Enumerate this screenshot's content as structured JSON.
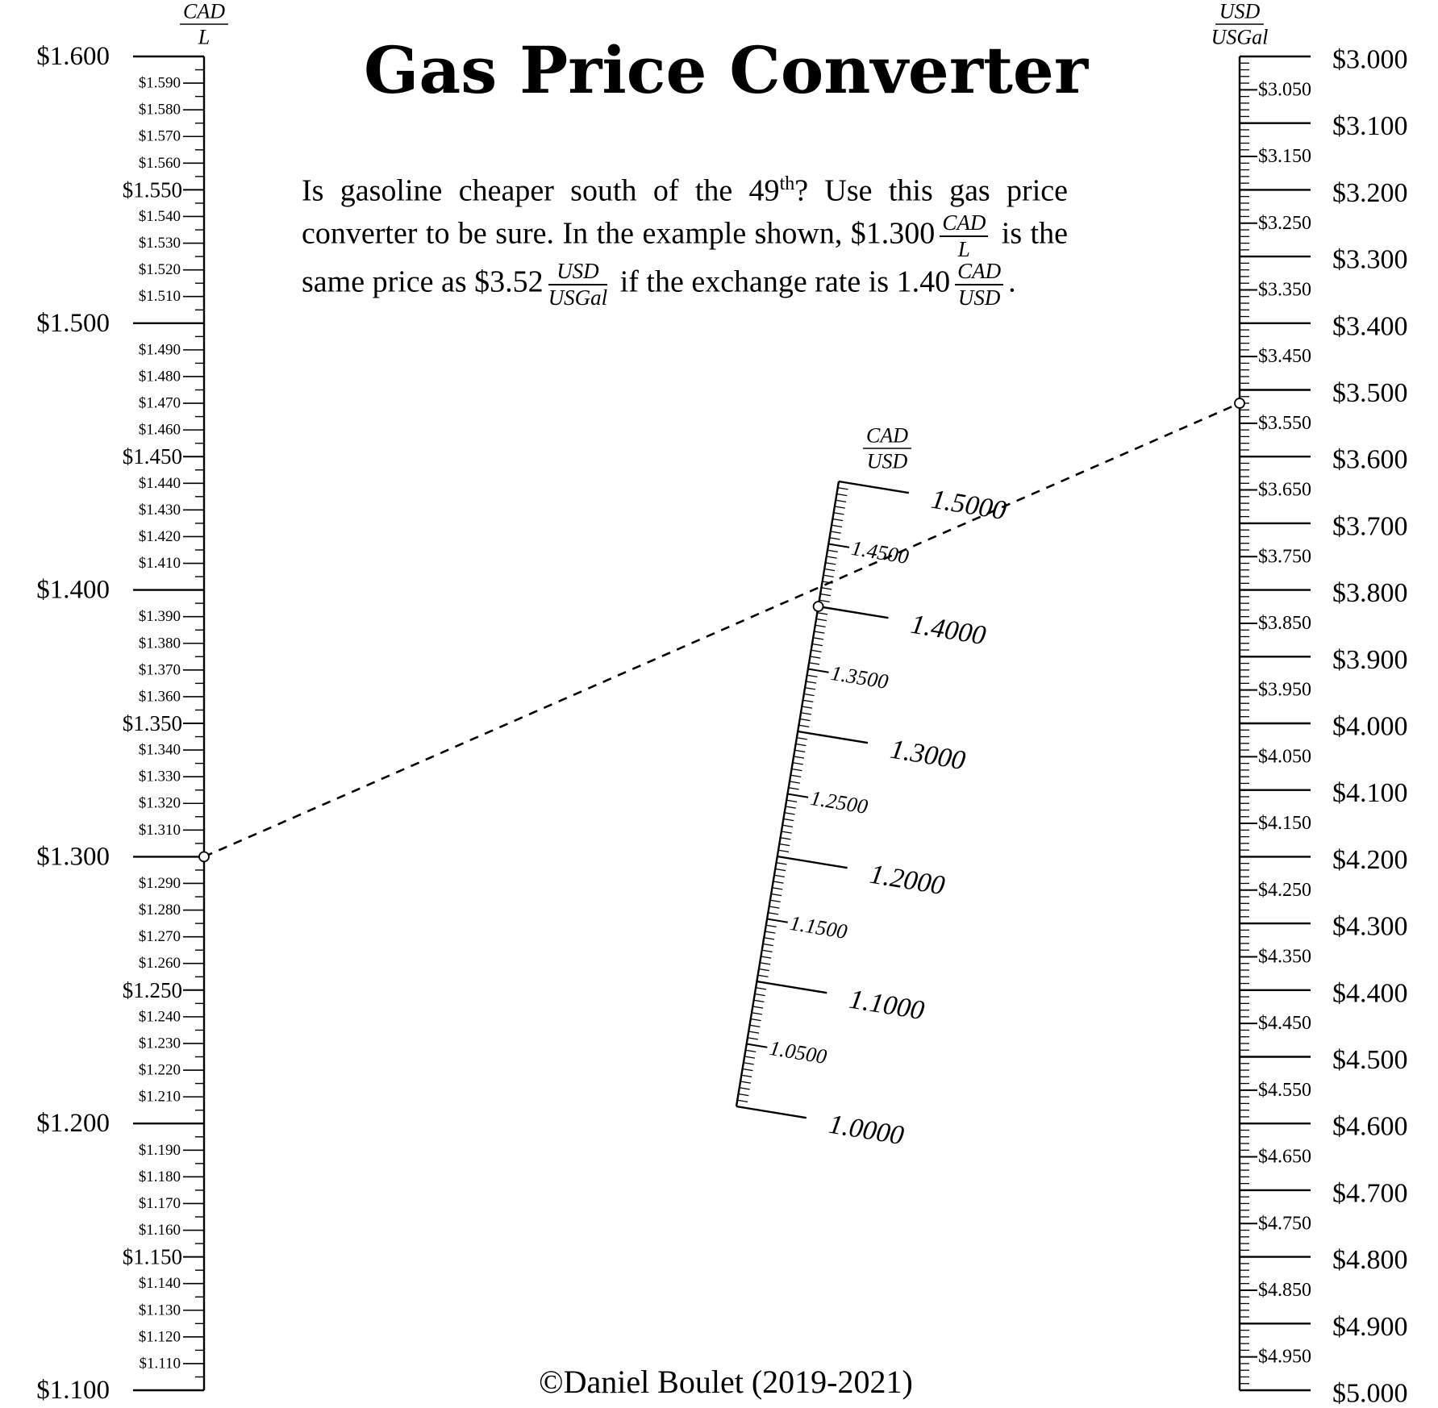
{
  "title": "Gas Price Converter",
  "intro": {
    "part1": "Is gasoline cheaper  south of the 49",
    "sup": "th",
    "part2": "? Use this gas price  converter to be sure. In the example  shown, $1.300",
    "unit1_num": "CAD",
    "unit1_den": "L",
    "part3": " is the same price as $3.52",
    "unit2_num": "USD",
    "unit2_den": "USGal",
    "part4": " if the exchange rate is 1.40",
    "unit3_num": "CAD",
    "unit3_den": "USD",
    "part5": "."
  },
  "credit": "©Daniel Boulet (2019-2021)",
  "scales": {
    "left": {
      "unit_num": "CAD",
      "unit_den": "L",
      "min": 1.1,
      "max": 1.6,
      "major_labels": [
        "$1.100",
        "$1.200",
        "$1.300",
        "$1.400",
        "$1.500",
        "$1.600"
      ],
      "mid_labels": [
        "$1.150",
        "$1.250",
        "$1.350",
        "$1.450",
        "$1.550"
      ],
      "minor_labels": [
        "$1.110",
        "$1.120",
        "$1.130",
        "$1.140",
        "$1.160",
        "$1.170",
        "$1.180",
        "$1.190",
        "$1.210",
        "$1.220",
        "$1.230",
        "$1.240",
        "$1.260",
        "$1.270",
        "$1.280",
        "$1.290",
        "$1.310",
        "$1.320",
        "$1.330",
        "$1.340",
        "$1.360",
        "$1.370",
        "$1.380",
        "$1.390",
        "$1.410",
        "$1.420",
        "$1.430",
        "$1.440",
        "$1.460",
        "$1.470",
        "$1.480",
        "$1.490",
        "$1.510",
        "$1.520",
        "$1.530",
        "$1.540",
        "$1.560",
        "$1.570",
        "$1.580",
        "$1.590"
      ]
    },
    "middle": {
      "unit_num": "CAD",
      "unit_den": "USD",
      "min": 1.0,
      "max": 1.5,
      "major_labels": [
        "1.0000",
        "1.1000",
        "1.2000",
        "1.3000",
        "1.4000",
        "1.5000"
      ],
      "mid_labels": [
        "1.0500",
        "1.1500",
        "1.2500",
        "1.3500",
        "1.4500"
      ]
    },
    "right": {
      "unit_num": "USD",
      "unit_den": "USGal",
      "min": 3.0,
      "max": 5.0,
      "major_labels": [
        "$3.000",
        "$3.100",
        "$3.200",
        "$3.300",
        "$3.400",
        "$3.500",
        "$3.600",
        "$3.700",
        "$3.800",
        "$3.900",
        "$4.000",
        "$4.100",
        "$4.200",
        "$4.300",
        "$4.400",
        "$4.500",
        "$4.600",
        "$4.700",
        "$4.800",
        "$4.900",
        "$5.000"
      ],
      "mid_labels": [
        "$3.050",
        "$3.150",
        "$3.250",
        "$3.350",
        "$3.450",
        "$3.550",
        "$3.650",
        "$3.750",
        "$3.850",
        "$3.950",
        "$4.050",
        "$4.150",
        "$4.250",
        "$4.350",
        "$4.450",
        "$4.550",
        "$4.650",
        "$4.750",
        "$4.850",
        "$4.950"
      ]
    }
  },
  "example": {
    "cad_per_l": 1.3,
    "rate": 1.4,
    "usd_per_usgal": 3.52
  }
}
